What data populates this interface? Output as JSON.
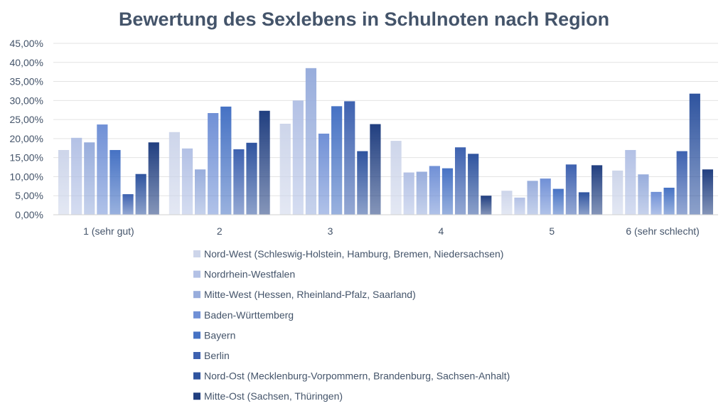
{
  "chart_data": {
    "type": "bar",
    "title": "Bewertung des Sexlebens in Schulnoten nach Region",
    "xlabel": "",
    "ylabel": "",
    "ylim": [
      0,
      45
    ],
    "y_ticks": [
      "0,00%",
      "5,00%",
      "10,00%",
      "15,00%",
      "20,00%",
      "25,00%",
      "30,00%",
      "35,00%",
      "40,00%",
      "45,00%"
    ],
    "categories": [
      "1 (sehr gut)",
      "2",
      "3",
      "4",
      "5",
      "6 (sehr schlecht)"
    ],
    "grid": true,
    "legend_position": "bottom",
    "series": [
      {
        "name": "Nord-West (Schleswig-Holstein, Hamburg, Bremen, Niedersachsen)",
        "color": "#cdd5ea",
        "values": [
          17.0,
          21.7,
          23.9,
          19.4,
          6.3,
          11.6
        ]
      },
      {
        "name": "Nordrhein-Westfalen",
        "color": "#b3c1e5",
        "values": [
          20.2,
          17.4,
          30.0,
          11.1,
          4.5,
          17.0
        ]
      },
      {
        "name": "Mitte-West (Hessen, Rheinland-Pfalz, Saarland)",
        "color": "#98addc",
        "values": [
          19.0,
          11.9,
          38.5,
          11.3,
          8.9,
          10.6
        ]
      },
      {
        "name": "Baden-Württemberg",
        "color": "#7090d6",
        "values": [
          23.7,
          26.7,
          21.3,
          12.8,
          9.5,
          6.0
        ]
      },
      {
        "name": "Bayern",
        "color": "#4672c4",
        "values": [
          17.0,
          28.4,
          28.5,
          12.2,
          6.8,
          7.1
        ]
      },
      {
        "name": "Berlin",
        "color": "#3e62b0",
        "values": [
          5.4,
          17.2,
          29.8,
          17.7,
          13.2,
          16.7
        ]
      },
      {
        "name": "Nord-Ost (Mecklenburg-Vorpommern, Brandenburg, Sachsen-Anhalt)",
        "color": "#2f549f",
        "values": [
          10.7,
          18.9,
          16.7,
          16.0,
          5.9,
          31.8
        ]
      },
      {
        "name": "Mitte-Ost (Sachsen, Thüringen)",
        "color": "#213f80",
        "values": [
          19.0,
          27.3,
          23.8,
          5.0,
          13.0,
          11.9
        ]
      }
    ]
  }
}
